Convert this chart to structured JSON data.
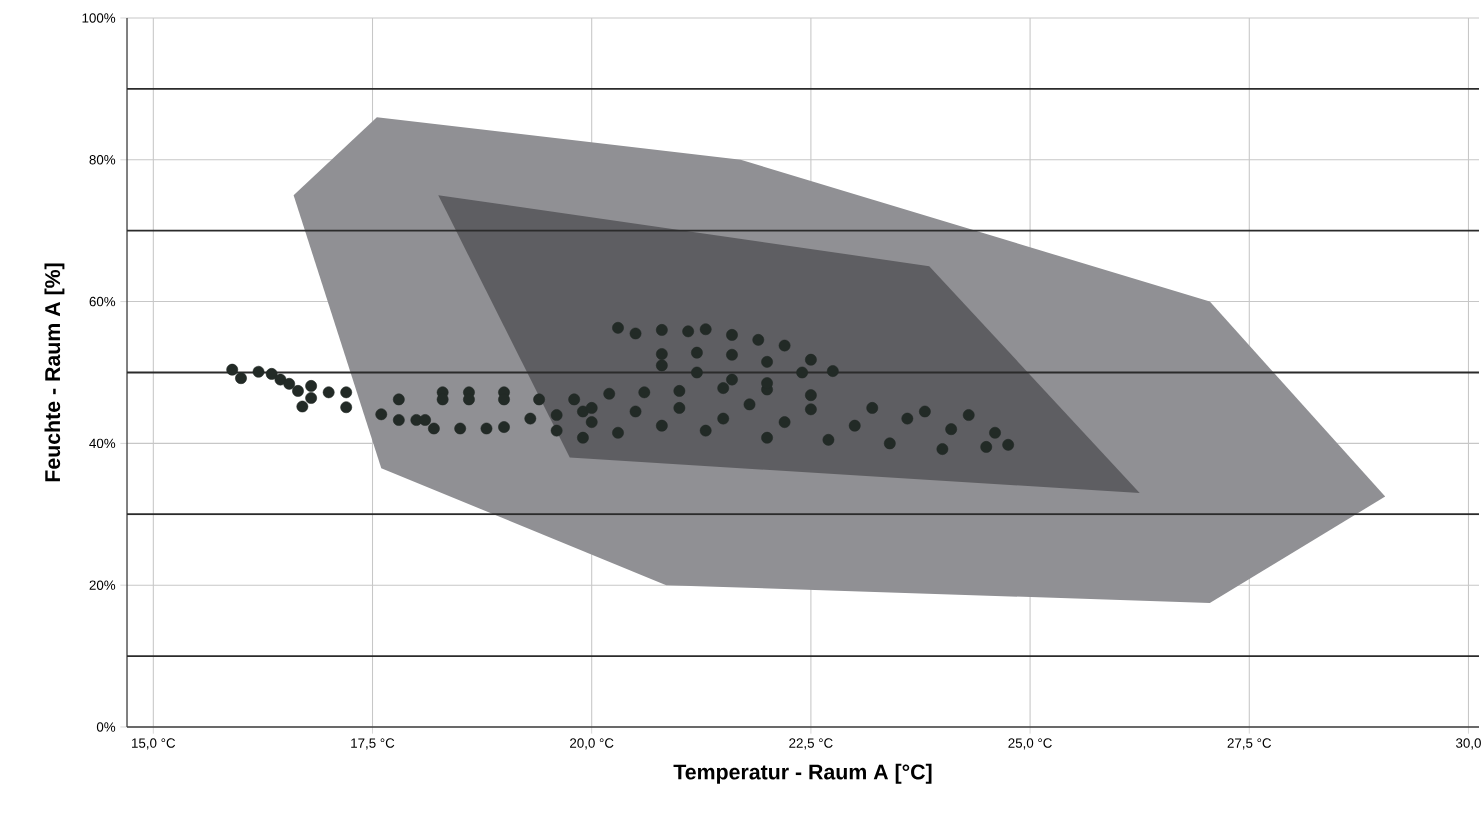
{
  "chart_data": {
    "type": "scatter",
    "xlabel": "Temperatur - Raum A [°C]",
    "ylabel": "Feuchte - Raum A [%]",
    "xlim": [
      14.7,
      30.12
    ],
    "ylim": [
      0,
      100
    ],
    "xticks": [
      {
        "value": 15,
        "label": "15,0 °C"
      },
      {
        "value": 17.5,
        "label": "17,5 °C"
      },
      {
        "value": 20,
        "label": "20,0 °C"
      },
      {
        "value": 22.5,
        "label": "22,5 °C"
      },
      {
        "value": 25,
        "label": "25,0 °C"
      },
      {
        "value": 27.5,
        "label": "27,5 °C"
      },
      {
        "value": 30,
        "label": "30,0"
      }
    ],
    "yticks": [
      {
        "value": 0,
        "label": "0%"
      },
      {
        "value": 20,
        "label": "20%"
      },
      {
        "value": 40,
        "label": "40%"
      },
      {
        "value": 60,
        "label": "60%"
      },
      {
        "value": 80,
        "label": "80%"
      },
      {
        "value": 100,
        "label": "100%"
      }
    ],
    "grid": true,
    "ref_lines": [
      {
        "axis": "y",
        "value": 10,
        "color": "#2b2b2b"
      },
      {
        "axis": "y",
        "value": 30,
        "color": "#2b2b2b"
      },
      {
        "axis": "y",
        "value": 50,
        "color": "#2b2b2b"
      },
      {
        "axis": "y",
        "value": 70,
        "color": "#2b2b2b"
      },
      {
        "axis": "y",
        "value": 90,
        "color": "#2b2b2b"
      }
    ],
    "series": [
      {
        "type": "area",
        "color": "#909094",
        "x": [
          16.6,
          17.55,
          21.7,
          27.05,
          29.05,
          27.05,
          20.85,
          17.6
        ],
        "values": [
          75,
          86,
          80,
          60,
          32.5,
          17.5,
          20,
          36.5
        ]
      },
      {
        "type": "area",
        "color": "#5e5e62",
        "x": [
          18.25,
          23.85,
          26.25,
          19.75
        ],
        "values": [
          75,
          65,
          33,
          38
        ]
      },
      {
        "color": "#222a26",
        "x": [
          15.9,
          16.0,
          16.2,
          16.35,
          16.45,
          16.55,
          16.65,
          16.7,
          16.8,
          16.8,
          17.0,
          17.2,
          17.2,
          17.6,
          17.8,
          17.8,
          18.0,
          18.1,
          18.2,
          18.5,
          18.8,
          19.0,
          19.3,
          19.6,
          19.9,
          18.3,
          18.3,
          18.6,
          18.6,
          19.0,
          19.0,
          19.4,
          19.8,
          20.2,
          20.6,
          21.0,
          21.5,
          22.0,
          22.5,
          20.3,
          20.5,
          20.8,
          21.1,
          21.3,
          21.6,
          21.9,
          22.2,
          22.5,
          22.75,
          20.8,
          20.8,
          21.2,
          21.2,
          21.6,
          21.6,
          22.0,
          22.0,
          22.4,
          20.0,
          20.0,
          20.3,
          20.5,
          20.8,
          21.0,
          21.3,
          21.5,
          21.8,
          22.0,
          22.2,
          22.5,
          22.7,
          23.0,
          23.2,
          23.4,
          23.6,
          23.8,
          24.0,
          24.1,
          24.3,
          24.5,
          24.6,
          24.75,
          19.6,
          19.9
        ],
        "values": [
          50.4,
          49.2,
          50.1,
          49.8,
          49.0,
          48.4,
          47.4,
          45.2,
          48.1,
          46.4,
          47.2,
          47.2,
          45.1,
          44.1,
          46.2,
          43.3,
          43.3,
          43.3,
          42.1,
          42.1,
          42.1,
          42.3,
          43.5,
          44.0,
          44.5,
          47.2,
          46.2,
          47.2,
          46.2,
          47.2,
          46.2,
          46.2,
          46.2,
          47.0,
          47.2,
          47.4,
          47.8,
          47.6,
          46.8,
          56.3,
          55.5,
          56.0,
          55.8,
          56.1,
          55.3,
          54.6,
          53.8,
          51.8,
          50.2,
          52.6,
          51.0,
          52.8,
          50.0,
          52.5,
          49.0,
          51.5,
          48.5,
          50.0,
          45.0,
          43.0,
          41.5,
          44.5,
          42.5,
          45.0,
          41.8,
          43.5,
          45.5,
          40.8,
          43.0,
          44.8,
          40.5,
          42.5,
          45.0,
          40.0,
          43.5,
          44.5,
          39.2,
          42.0,
          44.0,
          39.5,
          41.5,
          39.8,
          41.8,
          40.8
        ]
      }
    ]
  }
}
